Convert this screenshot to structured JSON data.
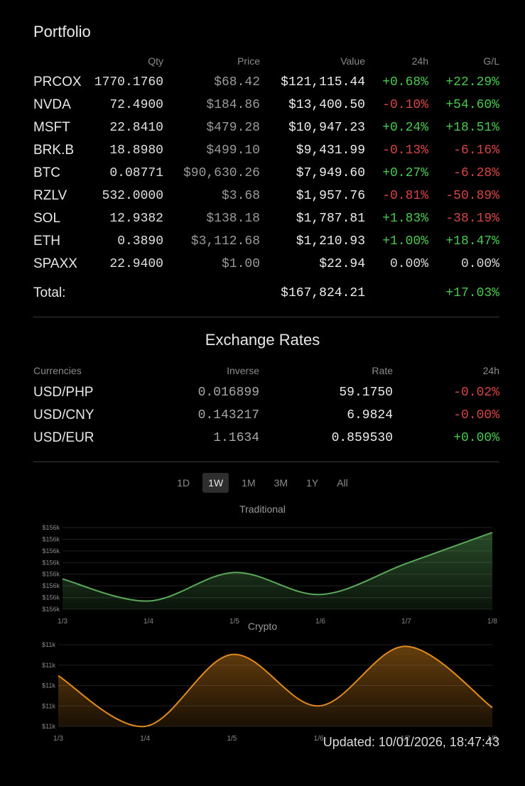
{
  "portfolio": {
    "title": "Portfolio",
    "headers": {
      "symbol": "",
      "qty": "Qty",
      "price": "Price",
      "value": "Value",
      "change24h": "24h",
      "gl": "G/L"
    },
    "rows": [
      {
        "symbol": "PRCOX",
        "qty": "1770.1760",
        "price": "$68.42",
        "value": "$121,115.44",
        "change24h": "+0.68%",
        "c_dir": "pos",
        "gl": "+22.29%",
        "g_dir": "pos"
      },
      {
        "symbol": "NVDA",
        "qty": "72.4900",
        "price": "$184.86",
        "value": "$13,400.50",
        "change24h": "-0.10%",
        "c_dir": "neg",
        "gl": "+54.60%",
        "g_dir": "pos"
      },
      {
        "symbol": "MSFT",
        "qty": "22.8410",
        "price": "$479.28",
        "value": "$10,947.23",
        "change24h": "+0.24%",
        "c_dir": "pos",
        "gl": "+18.51%",
        "g_dir": "pos"
      },
      {
        "symbol": "BRK.B",
        "qty": "18.8980",
        "price": "$499.10",
        "value": "$9,431.99",
        "change24h": "-0.13%",
        "c_dir": "neg",
        "gl": "-6.16%",
        "g_dir": "neg"
      },
      {
        "symbol": "BTC",
        "qty": "0.08771",
        "price": "$90,630.26",
        "value": "$7,949.60",
        "change24h": "+0.27%",
        "c_dir": "pos",
        "gl": "-6.28%",
        "g_dir": "neg"
      },
      {
        "symbol": "RZLV",
        "qty": "532.0000",
        "price": "$3.68",
        "value": "$1,957.76",
        "change24h": "-0.81%",
        "c_dir": "neg",
        "gl": "-50.89%",
        "g_dir": "neg"
      },
      {
        "symbol": "SOL",
        "qty": "12.9382",
        "price": "$138.18",
        "value": "$1,787.81",
        "change24h": "+1.83%",
        "c_dir": "pos",
        "gl": "-38.19%",
        "g_dir": "neg"
      },
      {
        "symbol": "ETH",
        "qty": "0.3890",
        "price": "$3,112.68",
        "value": "$1,210.93",
        "change24h": "+1.00%",
        "c_dir": "pos",
        "gl": "+18.47%",
        "g_dir": "pos"
      },
      {
        "symbol": "SPAXX",
        "qty": "22.9400",
        "price": "$1.00",
        "value": "$22.94",
        "change24h": "0.00%",
        "c_dir": "neu",
        "gl": "0.00%",
        "g_dir": "neu"
      }
    ],
    "total": {
      "label": "Total:",
      "value": "$167,824.21",
      "gl": "+17.03%",
      "g_dir": "pos"
    }
  },
  "exchange": {
    "title": "Exchange Rates",
    "headers": {
      "currencies": "Currencies",
      "inverse": "Inverse",
      "rate": "Rate",
      "change24h": "24h"
    },
    "rows": [
      {
        "pair": "USD/PHP",
        "inverse": "0.016899",
        "rate": "59.1750",
        "change24h": "-0.02%",
        "dir": "neg"
      },
      {
        "pair": "USD/CNY",
        "inverse": "0.143217",
        "rate": "6.9824",
        "change24h": "-0.00%",
        "dir": "neg"
      },
      {
        "pair": "USD/EUR",
        "inverse": "1.1634",
        "rate": "0.859530",
        "change24h": "+0.00%",
        "dir": "pos"
      }
    ]
  },
  "range_tabs": {
    "options": [
      "1D",
      "1W",
      "1M",
      "3M",
      "1Y",
      "All"
    ],
    "selected": "1W"
  },
  "chart_data": [
    {
      "type": "area",
      "title": "Traditional",
      "color": "#5aa85a",
      "x": [
        "1/3",
        "1/4",
        "1/5",
        "1/6",
        "1/7",
        "1/8"
      ],
      "y_tick_labels": [
        "$156k",
        "$156k",
        "$156k",
        "$156k",
        "$156k",
        "$156k",
        "$156k",
        "$156k"
      ],
      "values": [
        0.37,
        0.1,
        0.45,
        0.18,
        0.56,
        0.94
      ],
      "value_unit": "fraction of visible y-range (approximate, axis labels rounded to $156k)"
    },
    {
      "type": "area",
      "title": "Crypto",
      "color": "#e08a1e",
      "x": [
        "1/3",
        "1/4",
        "1/5",
        "1/6",
        "1/7",
        "1/8"
      ],
      "y_tick_labels": [
        "$11k",
        "$11k",
        "$11k",
        "$11k",
        "$11k"
      ],
      "values": [
        0.62,
        0.0,
        0.88,
        0.25,
        0.98,
        0.23
      ],
      "value_unit": "fraction of visible y-range (approximate, axis labels rounded to $11k)"
    }
  ],
  "footer": {
    "updated": "Updated: 10/01/2026, 18:47:43"
  }
}
